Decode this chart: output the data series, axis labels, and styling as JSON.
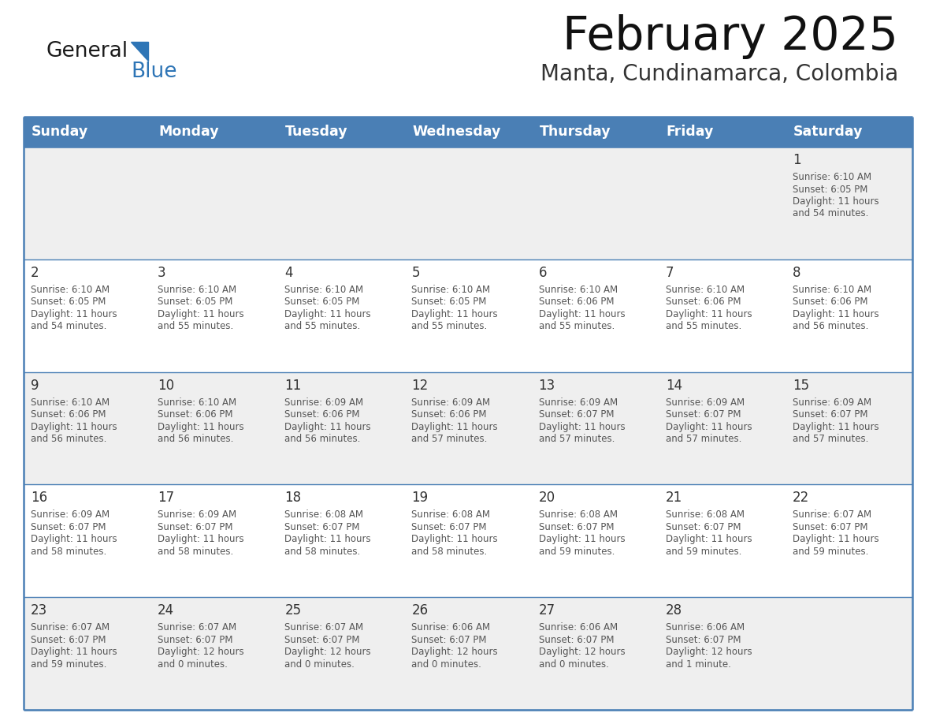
{
  "title": "February 2025",
  "subtitle": "Manta, Cundinamarca, Colombia",
  "days_of_week": [
    "Sunday",
    "Monday",
    "Tuesday",
    "Wednesday",
    "Thursday",
    "Friday",
    "Saturday"
  ],
  "header_bg": "#4a7fb5",
  "header_text": "#FFFFFF",
  "cell_bg_odd": "#EFEFEF",
  "cell_bg_even": "#FFFFFF",
  "border_color": "#4a7fb5",
  "text_color": "#444444",
  "calendar_data": [
    [
      null,
      null,
      null,
      null,
      null,
      null,
      {
        "day": "1",
        "sunrise": "6:10 AM",
        "sunset": "6:05 PM",
        "daylight": "11 hours\nand 54 minutes."
      }
    ],
    [
      {
        "day": "2",
        "sunrise": "6:10 AM",
        "sunset": "6:05 PM",
        "daylight": "11 hours\nand 54 minutes."
      },
      {
        "day": "3",
        "sunrise": "6:10 AM",
        "sunset": "6:05 PM",
        "daylight": "11 hours\nand 55 minutes."
      },
      {
        "day": "4",
        "sunrise": "6:10 AM",
        "sunset": "6:05 PM",
        "daylight": "11 hours\nand 55 minutes."
      },
      {
        "day": "5",
        "sunrise": "6:10 AM",
        "sunset": "6:05 PM",
        "daylight": "11 hours\nand 55 minutes."
      },
      {
        "day": "6",
        "sunrise": "6:10 AM",
        "sunset": "6:06 PM",
        "daylight": "11 hours\nand 55 minutes."
      },
      {
        "day": "7",
        "sunrise": "6:10 AM",
        "sunset": "6:06 PM",
        "daylight": "11 hours\nand 55 minutes."
      },
      {
        "day": "8",
        "sunrise": "6:10 AM",
        "sunset": "6:06 PM",
        "daylight": "11 hours\nand 56 minutes."
      }
    ],
    [
      {
        "day": "9",
        "sunrise": "6:10 AM",
        "sunset": "6:06 PM",
        "daylight": "11 hours\nand 56 minutes."
      },
      {
        "day": "10",
        "sunrise": "6:10 AM",
        "sunset": "6:06 PM",
        "daylight": "11 hours\nand 56 minutes."
      },
      {
        "day": "11",
        "sunrise": "6:09 AM",
        "sunset": "6:06 PM",
        "daylight": "11 hours\nand 56 minutes."
      },
      {
        "day": "12",
        "sunrise": "6:09 AM",
        "sunset": "6:06 PM",
        "daylight": "11 hours\nand 57 minutes."
      },
      {
        "day": "13",
        "sunrise": "6:09 AM",
        "sunset": "6:07 PM",
        "daylight": "11 hours\nand 57 minutes."
      },
      {
        "day": "14",
        "sunrise": "6:09 AM",
        "sunset": "6:07 PM",
        "daylight": "11 hours\nand 57 minutes."
      },
      {
        "day": "15",
        "sunrise": "6:09 AM",
        "sunset": "6:07 PM",
        "daylight": "11 hours\nand 57 minutes."
      }
    ],
    [
      {
        "day": "16",
        "sunrise": "6:09 AM",
        "sunset": "6:07 PM",
        "daylight": "11 hours\nand 58 minutes."
      },
      {
        "day": "17",
        "sunrise": "6:09 AM",
        "sunset": "6:07 PM",
        "daylight": "11 hours\nand 58 minutes."
      },
      {
        "day": "18",
        "sunrise": "6:08 AM",
        "sunset": "6:07 PM",
        "daylight": "11 hours\nand 58 minutes."
      },
      {
        "day": "19",
        "sunrise": "6:08 AM",
        "sunset": "6:07 PM",
        "daylight": "11 hours\nand 58 minutes."
      },
      {
        "day": "20",
        "sunrise": "6:08 AM",
        "sunset": "6:07 PM",
        "daylight": "11 hours\nand 59 minutes."
      },
      {
        "day": "21",
        "sunrise": "6:08 AM",
        "sunset": "6:07 PM",
        "daylight": "11 hours\nand 59 minutes."
      },
      {
        "day": "22",
        "sunrise": "6:07 AM",
        "sunset": "6:07 PM",
        "daylight": "11 hours\nand 59 minutes."
      }
    ],
    [
      {
        "day": "23",
        "sunrise": "6:07 AM",
        "sunset": "6:07 PM",
        "daylight": "11 hours\nand 59 minutes."
      },
      {
        "day": "24",
        "sunrise": "6:07 AM",
        "sunset": "6:07 PM",
        "daylight": "12 hours\nand 0 minutes."
      },
      {
        "day": "25",
        "sunrise": "6:07 AM",
        "sunset": "6:07 PM",
        "daylight": "12 hours\nand 0 minutes."
      },
      {
        "day": "26",
        "sunrise": "6:06 AM",
        "sunset": "6:07 PM",
        "daylight": "12 hours\nand 0 minutes."
      },
      {
        "day": "27",
        "sunrise": "6:06 AM",
        "sunset": "6:07 PM",
        "daylight": "12 hours\nand 0 minutes."
      },
      {
        "day": "28",
        "sunrise": "6:06 AM",
        "sunset": "6:07 PM",
        "daylight": "12 hours\nand 1 minute."
      },
      null
    ]
  ]
}
